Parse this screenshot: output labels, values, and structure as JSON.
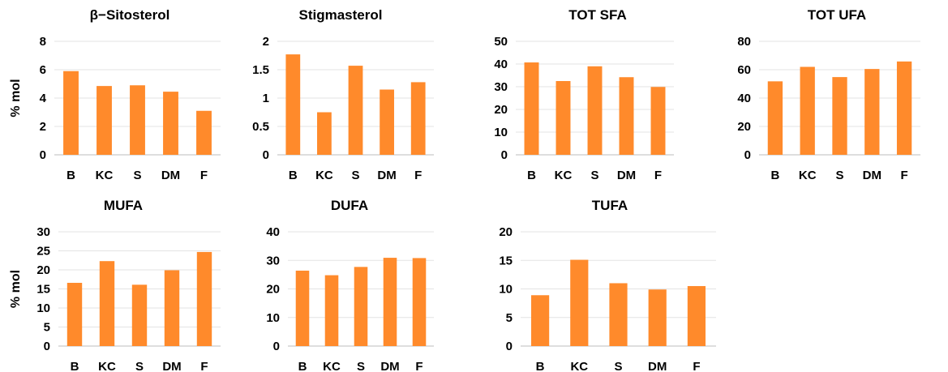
{
  "bar_color": "#FF8A2B",
  "chart_data": [
    {
      "type": "bar",
      "title": "β−Sitosterol",
      "ylabel": "% mol",
      "categories": [
        "B",
        "KC",
        "S",
        "DM",
        "F"
      ],
      "values": [
        5.9,
        4.85,
        4.9,
        4.45,
        3.1
      ],
      "ylim": [
        0,
        8
      ],
      "yticks": [
        "0",
        "2",
        "4",
        "6",
        "8"
      ],
      "grid": true
    },
    {
      "type": "bar",
      "title": "Stigmasterol",
      "ylabel": "",
      "categories": [
        "B",
        "KC",
        "S",
        "DM",
        "F"
      ],
      "values": [
        1.77,
        0.75,
        1.57,
        1.15,
        1.28
      ],
      "ylim": [
        0,
        2
      ],
      "yticks": [
        "0",
        "0.5",
        "1",
        "1.5",
        "2"
      ],
      "grid": true
    },
    {
      "type": "bar",
      "title": "TOT SFA",
      "ylabel": "",
      "categories": [
        "B",
        "KC",
        "S",
        "DM",
        "F"
      ],
      "values": [
        40.7,
        32.5,
        39,
        34.2,
        29.9
      ],
      "ylim": [
        0,
        50
      ],
      "yticks": [
        "0",
        "10",
        "20",
        "30",
        "40",
        "50"
      ],
      "grid": true
    },
    {
      "type": "bar",
      "title": "TOT UFA",
      "ylabel": "",
      "categories": [
        "B",
        "KC",
        "S",
        "DM",
        "F"
      ],
      "values": [
        51.8,
        62,
        54.8,
        60.5,
        65.8
      ],
      "ylim": [
        0,
        80
      ],
      "yticks": [
        "0",
        "20",
        "40",
        "60",
        "80"
      ],
      "grid": true
    },
    {
      "type": "bar",
      "title": "MUFA",
      "ylabel": "% mol",
      "categories": [
        "B",
        "KC",
        "S",
        "DM",
        "F"
      ],
      "values": [
        16.6,
        22.3,
        16.1,
        19.9,
        24.7
      ],
      "ylim": [
        0,
        30
      ],
      "yticks": [
        "0",
        "5",
        "10",
        "15",
        "20",
        "25",
        "30"
      ],
      "grid": true
    },
    {
      "type": "bar",
      "title": "DUFA",
      "ylabel": "",
      "categories": [
        "B",
        "KC",
        "S",
        "DM",
        "F"
      ],
      "values": [
        26.4,
        24.8,
        27.7,
        30.9,
        30.8
      ],
      "ylim": [
        0,
        40
      ],
      "yticks": [
        "0",
        "10",
        "20",
        "30",
        "40"
      ],
      "grid": true
    },
    {
      "type": "bar",
      "title": "TUFA",
      "ylabel": "",
      "categories": [
        "B",
        "KC",
        "S",
        "DM",
        "F"
      ],
      "values": [
        8.9,
        15.1,
        11,
        9.9,
        10.5
      ],
      "ylim": [
        0,
        20
      ],
      "yticks": [
        "0",
        "5",
        "10",
        "15",
        "20"
      ],
      "grid": true
    }
  ]
}
